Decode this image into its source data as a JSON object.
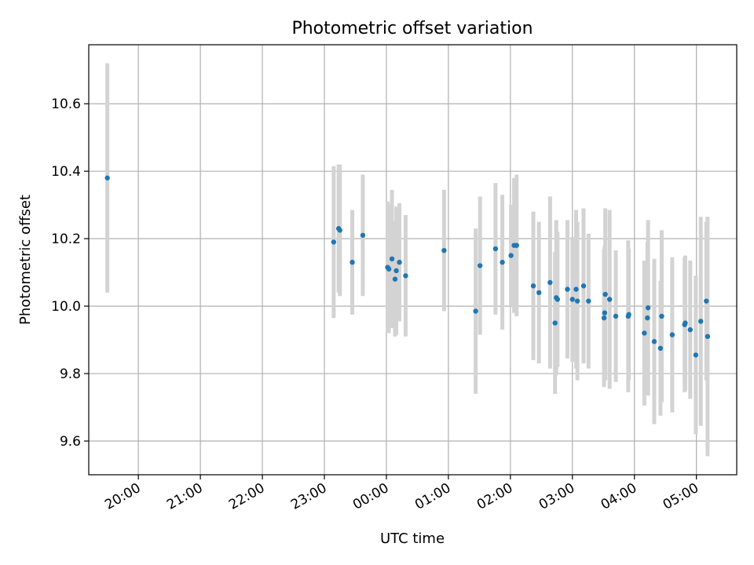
{
  "chart_data": {
    "type": "scatter",
    "title": "Photometric offset variation",
    "xlabel": "UTC time",
    "ylabel": "Photometric offset",
    "x_unit": "hours",
    "x_ticks": [
      {
        "value": 20,
        "label": "20:00"
      },
      {
        "value": 21,
        "label": "21:00"
      },
      {
        "value": 22,
        "label": "22:00"
      },
      {
        "value": 23,
        "label": "23:00"
      },
      {
        "value": 24,
        "label": "00:00"
      },
      {
        "value": 25,
        "label": "01:00"
      },
      {
        "value": 26,
        "label": "02:00"
      },
      {
        "value": 27,
        "label": "03:00"
      },
      {
        "value": 28,
        "label": "04:00"
      },
      {
        "value": 29,
        "label": "05:00"
      }
    ],
    "y_ticks": [
      {
        "value": 9.6,
        "label": "9.6"
      },
      {
        "value": 9.8,
        "label": "9.8"
      },
      {
        "value": 10.0,
        "label": "10.0"
      },
      {
        "value": 10.2,
        "label": "10.2"
      },
      {
        "value": 10.4,
        "label": "10.4"
      },
      {
        "value": 10.6,
        "label": "10.6"
      }
    ],
    "xlim": [
      19.2,
      29.65
    ],
    "ylim": [
      9.5,
      10.775
    ],
    "grid": true,
    "colors": {
      "point": "#1f77b4",
      "errorbar": "#d3d3d3",
      "grid": "#b0b0b0"
    },
    "points": [
      {
        "x": 19.5,
        "y": 10.38,
        "err": 0.34
      },
      {
        "x": 23.15,
        "y": 10.19,
        "err": 0.225
      },
      {
        "x": 23.23,
        "y": 10.23,
        "err": 0.19
      },
      {
        "x": 23.25,
        "y": 10.225,
        "err": 0.195
      },
      {
        "x": 23.45,
        "y": 10.13,
        "err": 0.155
      },
      {
        "x": 23.62,
        "y": 10.21,
        "err": 0.18
      },
      {
        "x": 24.02,
        "y": 10.115,
        "err": 0.195
      },
      {
        "x": 24.04,
        "y": 10.11,
        "err": 0.19
      },
      {
        "x": 24.09,
        "y": 10.14,
        "err": 0.205
      },
      {
        "x": 24.14,
        "y": 10.08,
        "err": 0.17
      },
      {
        "x": 24.16,
        "y": 10.105,
        "err": 0.19
      },
      {
        "x": 24.21,
        "y": 10.13,
        "err": 0.175
      },
      {
        "x": 24.31,
        "y": 10.09,
        "err": 0.18
      },
      {
        "x": 24.93,
        "y": 10.165,
        "err": 0.18
      },
      {
        "x": 25.44,
        "y": 9.985,
        "err": 0.245
      },
      {
        "x": 25.51,
        "y": 10.12,
        "err": 0.205
      },
      {
        "x": 25.76,
        "y": 10.17,
        "err": 0.195
      },
      {
        "x": 25.87,
        "y": 10.13,
        "err": 0.2
      },
      {
        "x": 26.01,
        "y": 10.15,
        "err": 0.15
      },
      {
        "x": 26.06,
        "y": 10.18,
        "err": 0.2
      },
      {
        "x": 26.1,
        "y": 10.18,
        "err": 0.21
      },
      {
        "x": 26.37,
        "y": 10.06,
        "err": 0.22
      },
      {
        "x": 26.46,
        "y": 10.04,
        "err": 0.21
      },
      {
        "x": 26.64,
        "y": 10.07,
        "err": 0.255
      },
      {
        "x": 26.72,
        "y": 9.95,
        "err": 0.21
      },
      {
        "x": 26.74,
        "y": 10.025,
        "err": 0.23
      },
      {
        "x": 26.76,
        "y": 10.02,
        "err": 0.2
      },
      {
        "x": 26.92,
        "y": 10.05,
        "err": 0.205
      },
      {
        "x": 27.0,
        "y": 10.02,
        "err": 0.185
      },
      {
        "x": 27.06,
        "y": 10.05,
        "err": 0.235
      },
      {
        "x": 27.08,
        "y": 10.015,
        "err": 0.235
      },
      {
        "x": 27.18,
        "y": 10.06,
        "err": 0.23
      },
      {
        "x": 27.26,
        "y": 10.015,
        "err": 0.2
      },
      {
        "x": 27.51,
        "y": 9.965,
        "err": 0.205
      },
      {
        "x": 27.52,
        "y": 9.98,
        "err": 0.2
      },
      {
        "x": 27.53,
        "y": 10.035,
        "err": 0.255
      },
      {
        "x": 27.6,
        "y": 10.02,
        "err": 0.265
      },
      {
        "x": 27.7,
        "y": 9.97,
        "err": 0.195
      },
      {
        "x": 27.9,
        "y": 9.97,
        "err": 0.225
      },
      {
        "x": 27.91,
        "y": 9.975,
        "err": 0.195
      },
      {
        "x": 28.16,
        "y": 9.92,
        "err": 0.215
      },
      {
        "x": 28.21,
        "y": 9.965,
        "err": 0.225
      },
      {
        "x": 28.22,
        "y": 9.995,
        "err": 0.26
      },
      {
        "x": 28.32,
        "y": 9.895,
        "err": 0.245
      },
      {
        "x": 28.42,
        "y": 9.875,
        "err": 0.2
      },
      {
        "x": 28.44,
        "y": 9.97,
        "err": 0.255
      },
      {
        "x": 28.61,
        "y": 9.915,
        "err": 0.23
      },
      {
        "x": 28.81,
        "y": 9.945,
        "err": 0.2
      },
      {
        "x": 28.82,
        "y": 9.95,
        "err": 0.2
      },
      {
        "x": 28.9,
        "y": 9.93,
        "err": 0.205
      },
      {
        "x": 28.99,
        "y": 9.855,
        "err": 0.235
      },
      {
        "x": 29.07,
        "y": 9.955,
        "err": 0.31
      },
      {
        "x": 29.16,
        "y": 10.015,
        "err": 0.235
      },
      {
        "x": 29.18,
        "y": 9.91,
        "err": 0.355
      }
    ]
  }
}
